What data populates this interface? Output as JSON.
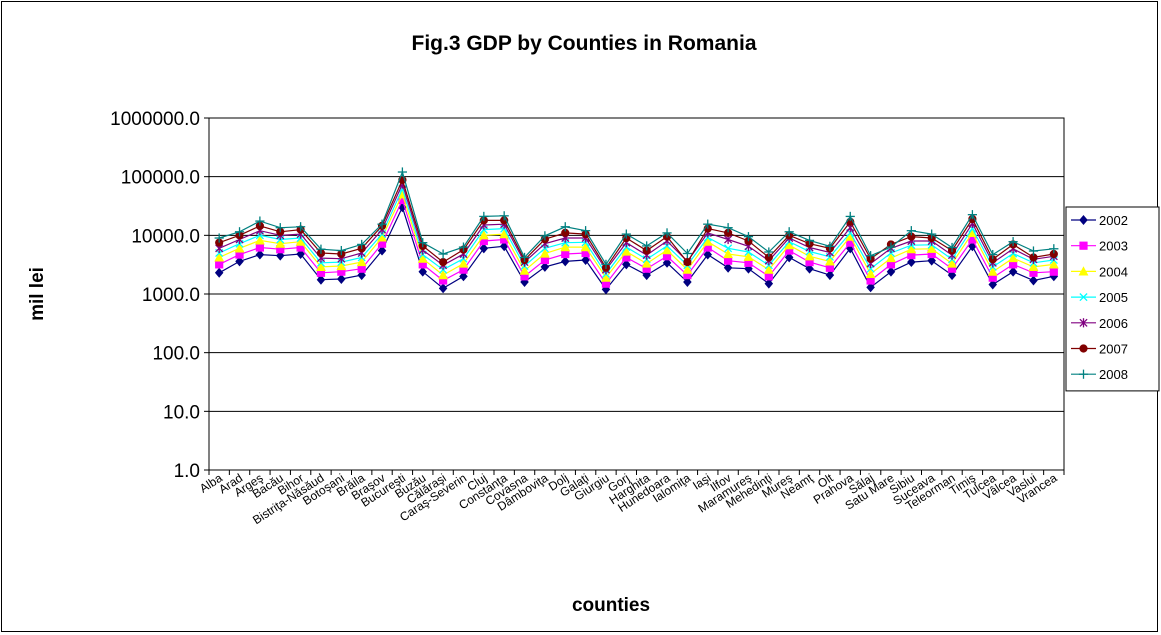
{
  "chart_data": {
    "type": "line",
    "title": "Fig.3 GDP by Counties in Romania",
    "xlabel": "counties",
    "ylabel": "mil lei",
    "yscale": "log",
    "ylim": [
      1,
      1000000
    ],
    "yticks": [
      "1.0",
      "10.0",
      "100.0",
      "1000.0",
      "10000.0",
      "100000.0",
      "1000000.0"
    ],
    "grid": "horizontal major gridlines",
    "legend_position": "right",
    "categories": [
      "Alba",
      "Arad",
      "Argeş",
      "Bacău",
      "Bihor",
      "Bistriţa-Năsăud",
      "Botoşani",
      "Brăila",
      "Braşov",
      "Bucureşti",
      "Buzău",
      "Călăraşi",
      "Caraş-Severin",
      "Cluj",
      "Constanţa",
      "Covasna",
      "Dâmboviţa",
      "Dolj",
      "Galaţi",
      "Giurgiu",
      "Gorj",
      "Harghita",
      "Hunedoara",
      "Ialomiţa",
      "Iaşi",
      "Ilfov",
      "Maramureş",
      "Mehedinţi",
      "Mureş",
      "Neamţ",
      "Olt",
      "Prahova",
      "Sălaj",
      "Satu Mare",
      "Sibiu",
      "Suceava",
      "Teleorman",
      "Timiş",
      "Tulcea",
      "Vâlcea",
      "Vaslui",
      "Vrancea"
    ],
    "series": [
      {
        "name": "2002",
        "color": "#000080",
        "marker": "diamond",
        "values": [
          2300,
          3600,
          4700,
          4500,
          4800,
          1750,
          1800,
          2100,
          5500,
          30000,
          2400,
          1250,
          2000,
          6000,
          6500,
          1600,
          2900,
          3600,
          3800,
          1200,
          3200,
          2100,
          3400,
          1600,
          4700,
          2800,
          2700,
          1500,
          4200,
          2700,
          2100,
          6000,
          1300,
          2400,
          3500,
          3700,
          2100,
          6500,
          1450,
          2400,
          1700,
          2000
        ]
      },
      {
        "name": "2003",
        "color": "#ff00ff",
        "marker": "square",
        "values": [
          3200,
          4700,
          6200,
          5800,
          6200,
          2300,
          2400,
          2700,
          7200,
          40000,
          3200,
          1700,
          2600,
          8000,
          8500,
          2000,
          3800,
          4800,
          5000,
          1500,
          4200,
          2700,
          4400,
          2100,
          6200,
          3700,
          3400,
          2000,
          5500,
          3500,
          2800,
          7500,
          1700,
          3200,
          4600,
          4800,
          2700,
          8500,
          1900,
          3200,
          2300,
          2400
        ]
      },
      {
        "name": "2004",
        "color": "#ffff00",
        "marker": "triangle",
        "values": [
          4200,
          6000,
          8200,
          7200,
          7800,
          2900,
          3000,
          3500,
          9200,
          50000,
          4000,
          2100,
          3300,
          10000,
          10500,
          2500,
          4900,
          6300,
          6300,
          1900,
          5300,
          3300,
          5600,
          2600,
          7800,
          4800,
          4300,
          2600,
          6800,
          4400,
          3600,
          9500,
          2200,
          4100,
          5800,
          5900,
          3300,
          11000,
          2400,
          4100,
          2900,
          3200
        ]
      },
      {
        "name": "2005",
        "color": "#00ffff",
        "marker": "x",
        "values": [
          5000,
          7200,
          10000,
          8500,
          9000,
          3400,
          3500,
          4200,
          10500,
          62000,
          4700,
          2600,
          4000,
          12500,
          13000,
          3000,
          6000,
          7500,
          7600,
          2200,
          6300,
          3900,
          6600,
          3100,
          9200,
          6000,
          5200,
          3100,
          7800,
          5300,
          4300,
          11000,
          2700,
          5000,
          6800,
          6900,
          3900,
          13000,
          2900,
          4900,
          3400,
          3800
        ]
      },
      {
        "name": "2006",
        "color": "#800080",
        "marker": "asterisk",
        "values": [
          6000,
          8500,
          12000,
          10000,
          10500,
          4100,
          4000,
          5000,
          12500,
          75000,
          5600,
          3100,
          4800,
          15000,
          15500,
          3500,
          7200,
          9000,
          9000,
          2600,
          7500,
          4600,
          8000,
          3600,
          11000,
          8500,
          6500,
          3700,
          9000,
          6200,
          5100,
          13500,
          3300,
          6000,
          8000,
          8000,
          4600,
          16000,
          3400,
          5900,
          3900,
          4400
        ]
      },
      {
        "name": "2007",
        "color": "#800000",
        "marker": "circle",
        "values": [
          7500,
          10000,
          14500,
          11500,
          12500,
          5000,
          4800,
          6000,
          14500,
          88000,
          6600,
          3500,
          5700,
          18000,
          18000,
          3800,
          8600,
          11000,
          10500,
          2800,
          9000,
          5500,
          9500,
          3500,
          13000,
          11000,
          8000,
          4200,
          10000,
          7200,
          6000,
          17000,
          4000,
          7000,
          9500,
          9000,
          5500,
          19000,
          3900,
          7000,
          4200,
          4800
        ]
      },
      {
        "name": "2008",
        "color": "#008080",
        "marker": "plus",
        "values": [
          9000,
          11500,
          17500,
          13500,
          14000,
          5800,
          5500,
          7000,
          15500,
          120000,
          7500,
          4800,
          6300,
          21000,
          21500,
          4200,
          9800,
          14000,
          12000,
          3200,
          10500,
          6600,
          11000,
          4900,
          15500,
          13500,
          9500,
          5200,
          11500,
          8200,
          6500,
          21000,
          4500,
          6300,
          12000,
          10500,
          6200,
          22500,
          4700,
          7800,
          5400,
          5900
        ]
      }
    ]
  }
}
